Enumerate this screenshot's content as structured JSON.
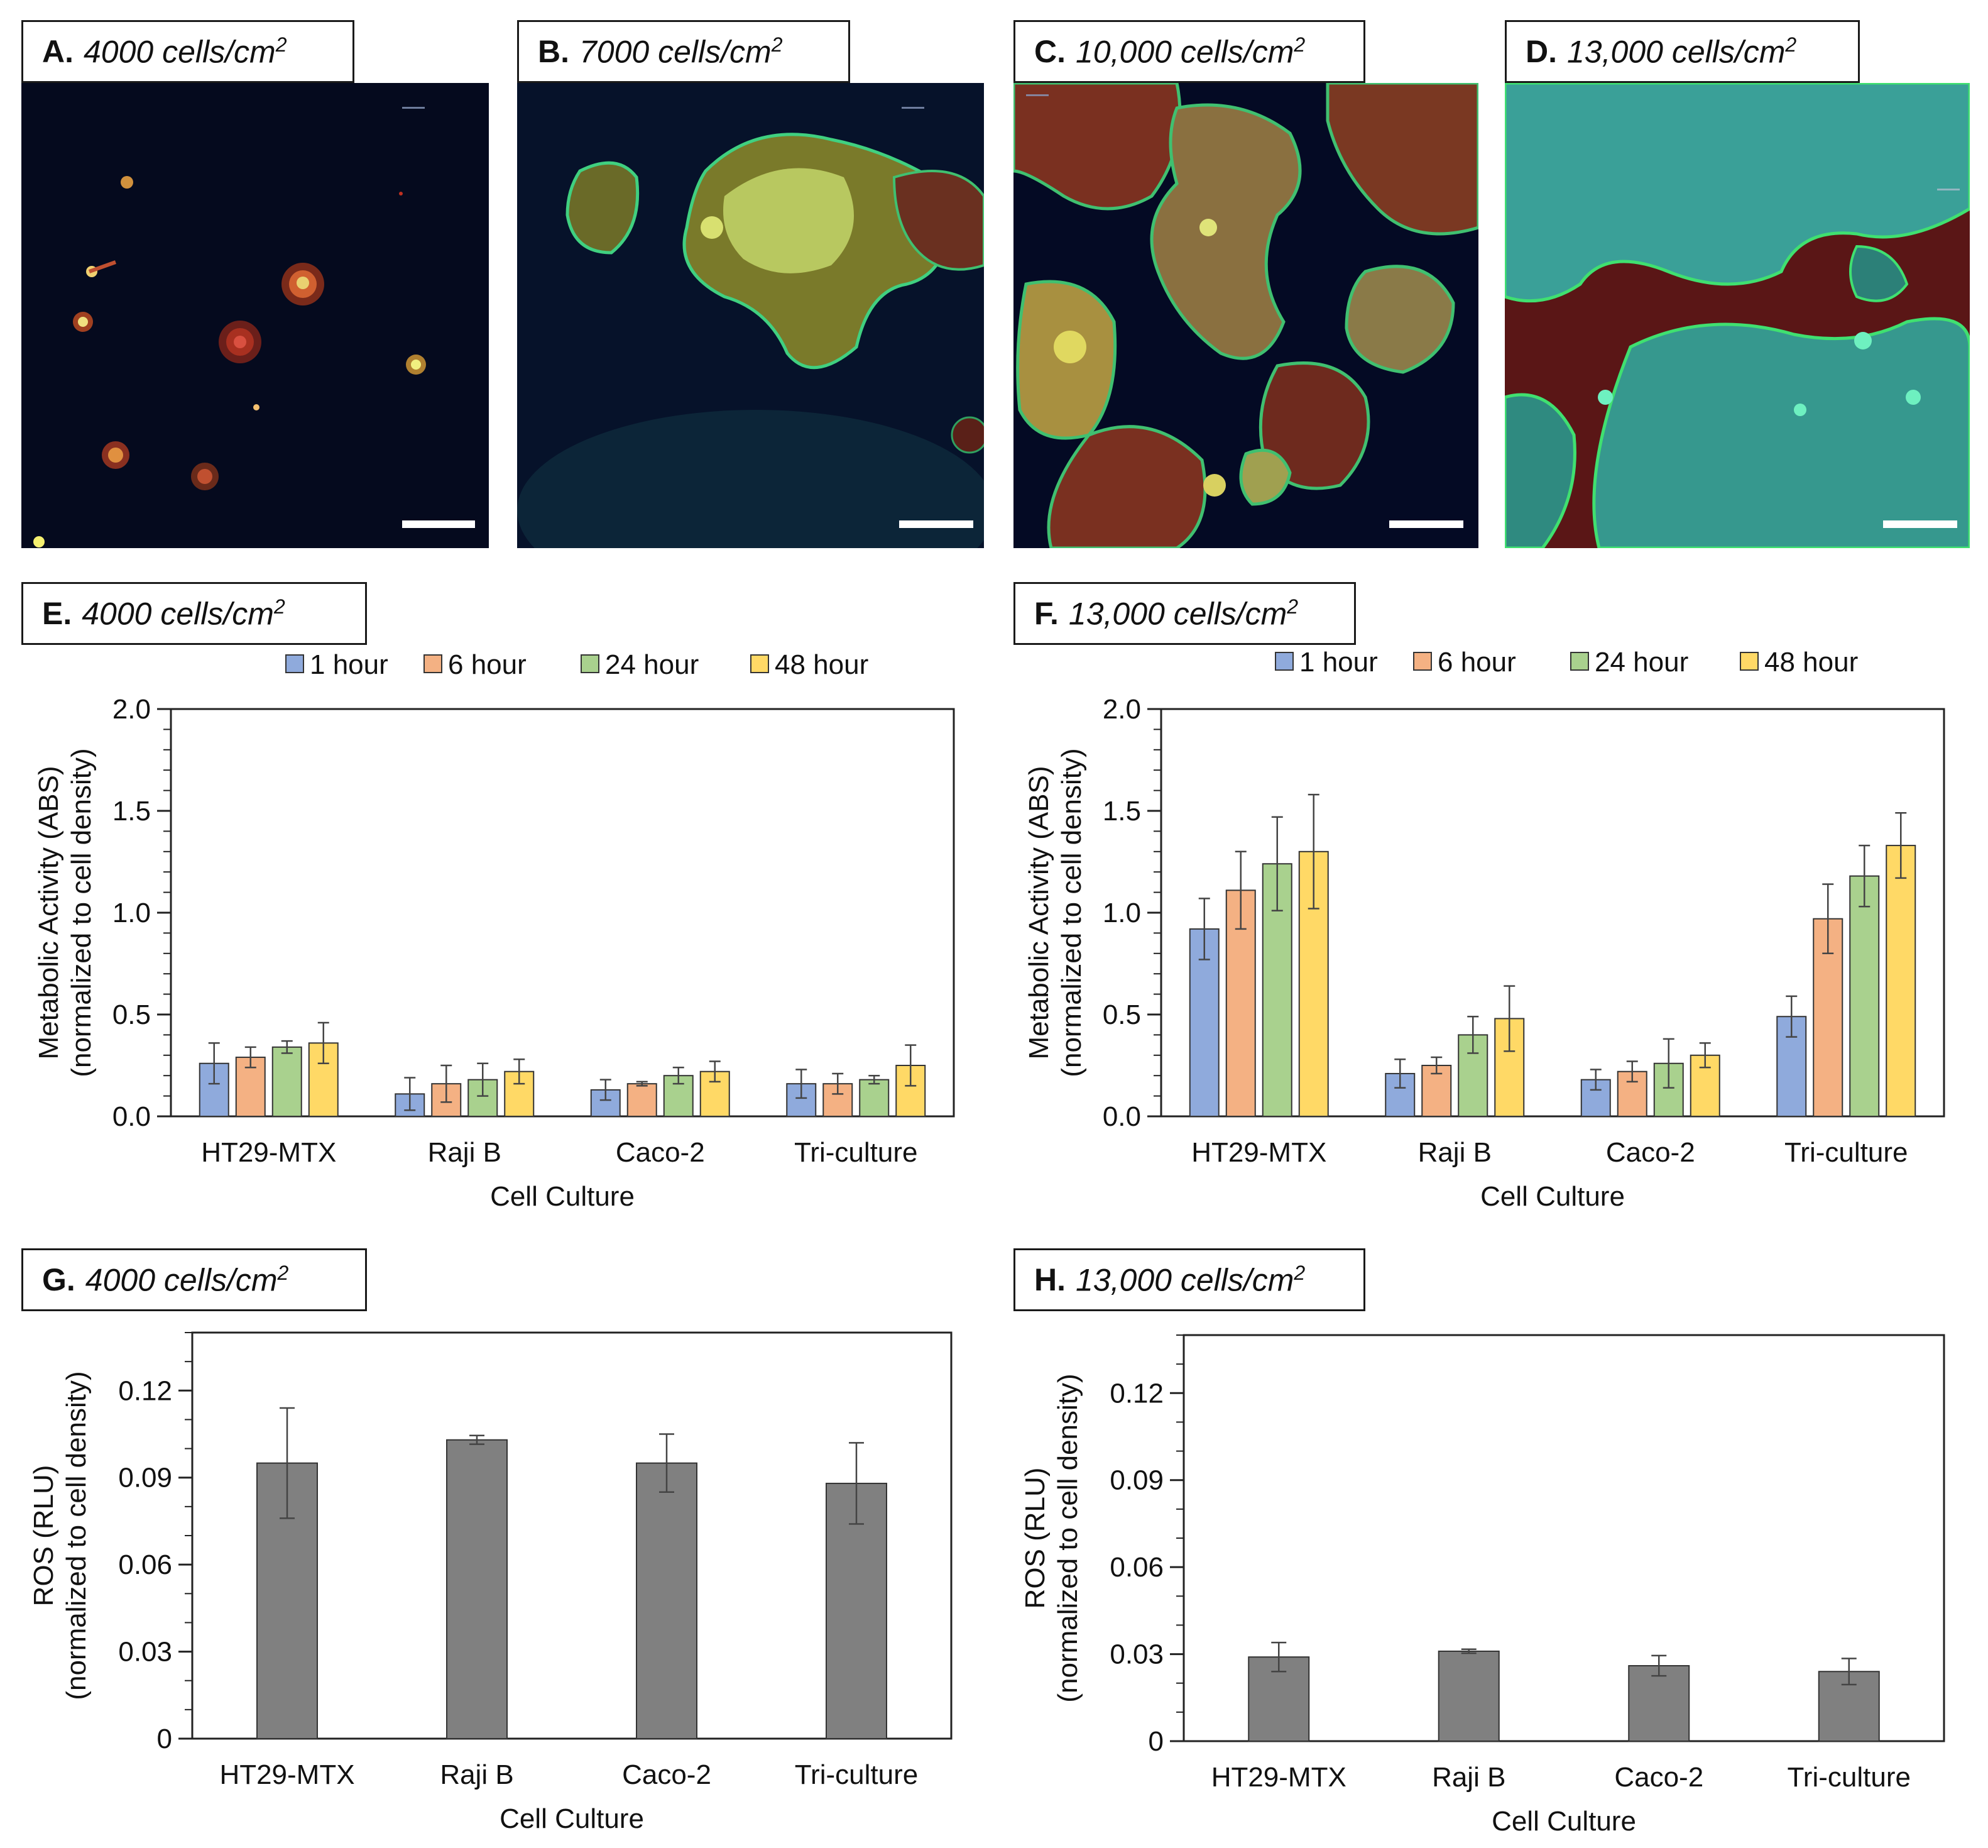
{
  "micrographs": [
    {
      "letter": "A.",
      "density": "4000 cells/cm",
      "sup": "2"
    },
    {
      "letter": "B.",
      "density": "7000 cells/cm",
      "sup": "2"
    },
    {
      "letter": "C.",
      "density": "10,000 cells/cm",
      "sup": "2"
    },
    {
      "letter": "D.",
      "density": "13,000 cells/cm",
      "sup": "2"
    }
  ],
  "panel_labels": {
    "E": {
      "letter": "E.",
      "density": "4000 cells/cm",
      "sup": "2"
    },
    "F": {
      "letter": "F.",
      "density": "13,000 cells/cm",
      "sup": "2"
    },
    "G": {
      "letter": "G.",
      "density": "4000 cells/cm",
      "sup": "2"
    },
    "H": {
      "letter": "H.",
      "density": "13,000 cells/cm",
      "sup": "2"
    }
  },
  "colors": {
    "1 hour": "#8faadc",
    "6 hour": "#f4b183",
    "24 hour": "#a9d18e",
    "48 hour": "#ffd966",
    "ros_bar": "#808080",
    "micro_bg": "#050a1e"
  },
  "chart_data": [
    {
      "id": "E",
      "type": "bar",
      "title": "4000 cells/cm2",
      "categories": [
        "HT29-MTX",
        "Raji B",
        "Caco-2",
        "Tri-culture"
      ],
      "xlabel": "Cell Culture",
      "ylabel": [
        "Metabolic Activity (ABS)",
        "(normalized to cell density)"
      ],
      "ylim": [
        0,
        2.0
      ],
      "yticks": [
        "0.0",
        "0.5",
        "1.0",
        "1.5",
        "2.0"
      ],
      "legend": [
        "1 hour",
        "6 hour",
        "24 hour",
        "48 hour"
      ],
      "series": [
        {
          "name": "1 hour",
          "values": [
            0.26,
            0.11,
            0.13,
            0.16
          ],
          "errors": [
            0.1,
            0.08,
            0.05,
            0.07
          ]
        },
        {
          "name": "6 hour",
          "values": [
            0.29,
            0.16,
            0.16,
            0.16
          ],
          "errors": [
            0.05,
            0.09,
            0.01,
            0.05
          ]
        },
        {
          "name": "24 hour",
          "values": [
            0.34,
            0.18,
            0.2,
            0.18
          ],
          "errors": [
            0.03,
            0.08,
            0.04,
            0.02
          ]
        },
        {
          "name": "48 hour",
          "values": [
            0.36,
            0.22,
            0.22,
            0.25
          ],
          "errors": [
            0.1,
            0.06,
            0.05,
            0.1
          ]
        }
      ]
    },
    {
      "id": "F",
      "type": "bar",
      "title": "13,000 cells/cm2",
      "categories": [
        "HT29-MTX",
        "Raji B",
        "Caco-2",
        "Tri-culture"
      ],
      "xlabel": "Cell Culture",
      "ylabel": [
        "Metabolic Activity (ABS)",
        "(normalized to cell density)"
      ],
      "ylim": [
        0,
        2.0
      ],
      "yticks": [
        "0.0",
        "0.5",
        "1.0",
        "1.5",
        "2.0"
      ],
      "legend": [
        "1 hour",
        "6 hour",
        "24 hour",
        "48 hour"
      ],
      "series": [
        {
          "name": "1 hour",
          "values": [
            0.92,
            0.21,
            0.18,
            0.49
          ],
          "errors": [
            0.15,
            0.07,
            0.05,
            0.1
          ]
        },
        {
          "name": "6 hour",
          "values": [
            1.11,
            0.25,
            0.22,
            0.97
          ],
          "errors": [
            0.19,
            0.04,
            0.05,
            0.17
          ]
        },
        {
          "name": "24 hour",
          "values": [
            1.24,
            0.4,
            0.26,
            1.18
          ],
          "errors": [
            0.23,
            0.09,
            0.12,
            0.15
          ]
        },
        {
          "name": "48 hour",
          "values": [
            1.3,
            0.48,
            0.3,
            1.33
          ],
          "errors": [
            0.28,
            0.16,
            0.06,
            0.16
          ]
        }
      ]
    },
    {
      "id": "G",
      "type": "bar",
      "title": "4000 cells/cm2",
      "categories": [
        "HT29-MTX",
        "Raji B",
        "Caco-2",
        "Tri-culture"
      ],
      "xlabel": "Cell Culture",
      "ylabel": [
        "ROS (RLU)",
        "(normalized to cell density)"
      ],
      "ylim": [
        0,
        0.14
      ],
      "yticks": [
        "0",
        "0.03",
        "0.06",
        "0.09",
        "0.12"
      ],
      "series": [
        {
          "name": "ROS",
          "values": [
            0.095,
            0.103,
            0.095,
            0.088
          ],
          "errors": [
            0.019,
            0.0015,
            0.01,
            0.014
          ]
        }
      ]
    },
    {
      "id": "H",
      "type": "bar",
      "title": "13,000 cells/cm2",
      "categories": [
        "HT29-MTX",
        "Raji B",
        "Caco-2",
        "Tri-culture"
      ],
      "xlabel": "Cell Culture",
      "ylabel": [
        "ROS (RLU)",
        "(normalized to cell density)"
      ],
      "ylim": [
        0,
        0.14
      ],
      "yticks": [
        "0",
        "0.03",
        "0.06",
        "0.09",
        "0.12"
      ],
      "series": [
        {
          "name": "ROS",
          "values": [
            0.029,
            0.031,
            0.026,
            0.024
          ],
          "errors": [
            0.005,
            0.0007,
            0.0035,
            0.0045
          ]
        }
      ]
    }
  ]
}
